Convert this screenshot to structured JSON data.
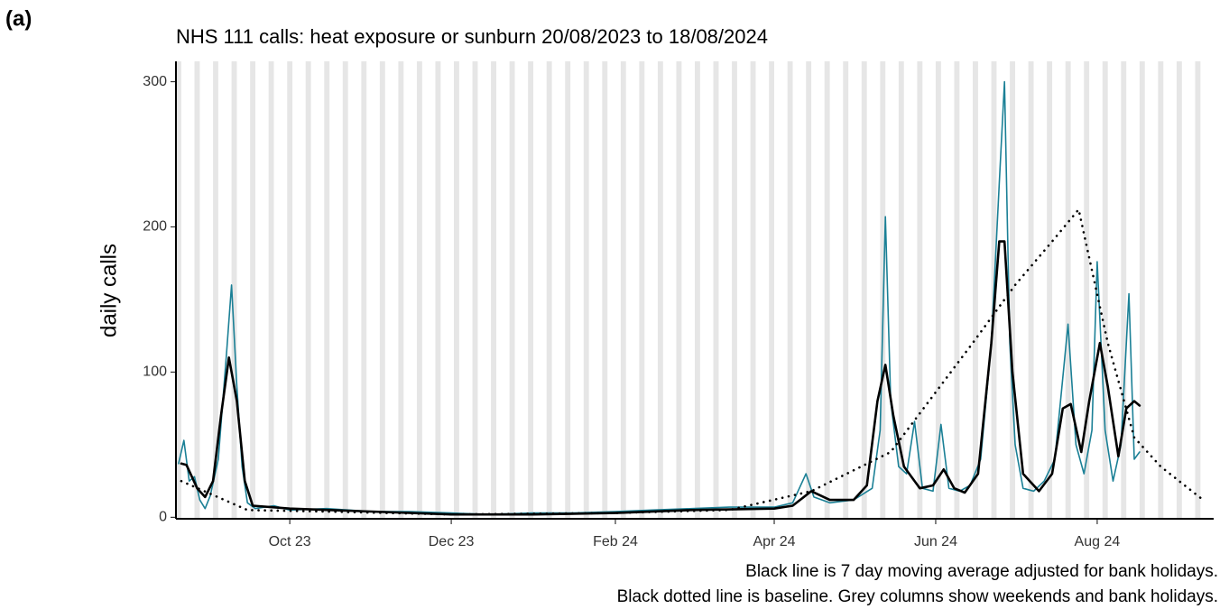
{
  "panel_label": "(a)",
  "chart_data": {
    "type": "line",
    "title": "NHS 111 calls: heat exposure or sunburn 20/08/2023 to 18/08/2024",
    "y_label": "daily calls",
    "notes": [
      "Black line is 7 day moving average adjusted for bank holidays.",
      "Black dotted line is baseline. Grey columns show weekends and bank holidays."
    ],
    "xlim": [
      "2023-08-19",
      "2024-09-14"
    ],
    "xticks": [
      {
        "value": "2023-10-01",
        "label": "Oct 23"
      },
      {
        "value": "2023-12-01",
        "label": "Dec 23"
      },
      {
        "value": "2024-02-01",
        "label": "Feb 24"
      },
      {
        "value": "2024-04-01",
        "label": "Apr 24"
      },
      {
        "value": "2024-06-01",
        "label": "Jun 24"
      },
      {
        "value": "2024-08-01",
        "label": "Aug 24"
      }
    ],
    "ylim": [
      -1,
      314
    ],
    "yticks": [
      0,
      100,
      200,
      300
    ],
    "weekend_columns": true,
    "series": [
      {
        "name": "daily calls",
        "color": "#1b8096",
        "style": "solid",
        "width": 1.6,
        "x": [
          "2023-08-20",
          "2023-08-22",
          "2023-08-24",
          "2023-08-26",
          "2023-08-28",
          "2023-08-30",
          "2023-09-01",
          "2023-09-04",
          "2023-09-07",
          "2023-09-09",
          "2023-09-11",
          "2023-09-13",
          "2023-09-15",
          "2023-09-18",
          "2023-09-25",
          "2023-10-01",
          "2023-10-15",
          "2023-11-01",
          "2023-11-15",
          "2023-12-01",
          "2023-12-15",
          "2024-01-01",
          "2024-01-15",
          "2024-02-01",
          "2024-02-15",
          "2024-03-01",
          "2024-03-15",
          "2024-04-01",
          "2024-04-08",
          "2024-04-13",
          "2024-04-16",
          "2024-04-22",
          "2024-05-01",
          "2024-05-08",
          "2024-05-11",
          "2024-05-13",
          "2024-05-15",
          "2024-05-18",
          "2024-05-21",
          "2024-05-24",
          "2024-05-27",
          "2024-05-31",
          "2024-06-03",
          "2024-06-06",
          "2024-06-10",
          "2024-06-14",
          "2024-06-18",
          "2024-06-22",
          "2024-06-25",
          "2024-06-27",
          "2024-06-29",
          "2024-07-01",
          "2024-07-04",
          "2024-07-08",
          "2024-07-12",
          "2024-07-16",
          "2024-07-21",
          "2024-07-24",
          "2024-07-27",
          "2024-07-30",
          "2024-08-01",
          "2024-08-04",
          "2024-08-07",
          "2024-08-10",
          "2024-08-13",
          "2024-08-15",
          "2024-08-17"
        ],
        "values": [
          37,
          53,
          25,
          28,
          12,
          6,
          15,
          40,
          110,
          160,
          90,
          35,
          10,
          6,
          8,
          5,
          6,
          4,
          4,
          3,
          2,
          3,
          3,
          4,
          5,
          6,
          7,
          7,
          10,
          30,
          14,
          10,
          12,
          20,
          60,
          207,
          80,
          35,
          30,
          66,
          20,
          18,
          64,
          20,
          18,
          22,
          40,
          120,
          230,
          300,
          120,
          50,
          20,
          18,
          25,
          40,
          133,
          50,
          30,
          60,
          176,
          60,
          25,
          50,
          154,
          40,
          45
        ]
      },
      {
        "name": "7 day moving average",
        "color": "#000000",
        "style": "solid",
        "width": 2.6,
        "x": [
          "2023-08-21",
          "2023-08-23",
          "2023-08-27",
          "2023-08-30",
          "2023-09-02",
          "2023-09-05",
          "2023-09-08",
          "2023-09-11",
          "2023-09-14",
          "2023-09-17",
          "2023-10-01",
          "2023-11-01",
          "2023-12-01",
          "2024-01-01",
          "2024-02-01",
          "2024-03-01",
          "2024-04-01",
          "2024-04-08",
          "2024-04-15",
          "2024-04-22",
          "2024-05-01",
          "2024-05-06",
          "2024-05-10",
          "2024-05-13",
          "2024-05-16",
          "2024-05-20",
          "2024-05-26",
          "2024-05-31",
          "2024-06-04",
          "2024-06-08",
          "2024-06-12",
          "2024-06-17",
          "2024-06-22",
          "2024-06-25",
          "2024-06-27",
          "2024-06-30",
          "2024-07-04",
          "2024-07-10",
          "2024-07-15",
          "2024-07-19",
          "2024-07-22",
          "2024-07-26",
          "2024-07-29",
          "2024-08-02",
          "2024-08-05",
          "2024-08-09",
          "2024-08-12",
          "2024-08-15",
          "2024-08-17"
        ],
        "values": [
          37,
          36,
          20,
          14,
          25,
          70,
          110,
          80,
          25,
          8,
          6,
          4,
          2,
          2,
          3,
          5,
          6,
          8,
          18,
          12,
          12,
          22,
          80,
          105,
          70,
          35,
          20,
          22,
          33,
          20,
          17,
          30,
          120,
          190,
          190,
          100,
          30,
          18,
          30,
          75,
          78,
          45,
          80,
          120,
          90,
          42,
          75,
          80,
          77
        ]
      },
      {
        "name": "baseline",
        "color": "#000000",
        "style": "dotted",
        "width": 2.6,
        "x": [
          "2023-08-21",
          "2023-09-15",
          "2023-10-15",
          "2023-12-01",
          "2024-02-01",
          "2024-03-15",
          "2024-04-15",
          "2024-05-15",
          "2024-06-15",
          "2024-07-01",
          "2024-07-15",
          "2024-07-25",
          "2024-08-05",
          "2024-08-15",
          "2024-08-25",
          "2024-09-10"
        ],
        "values": [
          25,
          5,
          4,
          2,
          3,
          5,
          18,
          45,
          120,
          160,
          190,
          212,
          120,
          55,
          35,
          12
        ]
      }
    ]
  }
}
